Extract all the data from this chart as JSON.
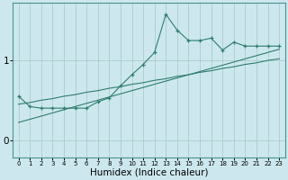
{
  "xlabel": "Humidex (Indice chaleur)",
  "bg_color": "#cce8ee",
  "grid_color": "#aacccc",
  "line_color": "#2e7d6e",
  "x_data": [
    0,
    1,
    2,
    3,
    4,
    5,
    6,
    7,
    8,
    9,
    10,
    11,
    12,
    13,
    14,
    15,
    16,
    17,
    18,
    19,
    20,
    21,
    22,
    23
  ],
  "y_main": [
    0.55,
    0.42,
    0.4,
    0.4,
    0.4,
    0.4,
    0.4,
    0.48,
    0.53,
    0.68,
    0.82,
    0.95,
    1.1,
    1.58,
    1.38,
    1.25,
    1.25,
    1.28,
    1.13,
    1.23,
    1.18,
    1.18,
    1.18,
    1.18
  ],
  "y_line1": [
    0.45,
    0.47,
    0.5,
    0.52,
    0.55,
    0.57,
    0.6,
    0.62,
    0.65,
    0.67,
    0.7,
    0.72,
    0.75,
    0.77,
    0.8,
    0.82,
    0.85,
    0.87,
    0.9,
    0.92,
    0.95,
    0.97,
    1.0,
    1.02
  ],
  "y_line2": [
    0.22,
    0.26,
    0.3,
    0.34,
    0.38,
    0.42,
    0.46,
    0.5,
    0.54,
    0.58,
    0.62,
    0.66,
    0.7,
    0.74,
    0.78,
    0.82,
    0.86,
    0.9,
    0.94,
    0.98,
    1.02,
    1.06,
    1.1,
    1.14
  ],
  "yticks": [
    0,
    1
  ],
  "ylim": [
    -0.22,
    1.72
  ],
  "xlim": [
    -0.5,
    23.5
  ],
  "xticks": [
    0,
    1,
    2,
    3,
    4,
    5,
    6,
    7,
    8,
    9,
    10,
    11,
    12,
    13,
    14,
    15,
    16,
    17,
    18,
    19,
    20,
    21,
    22,
    23
  ],
  "xtick_fontsize": 5.0,
  "ytick_fontsize": 7.5,
  "xlabel_fontsize": 7.5
}
